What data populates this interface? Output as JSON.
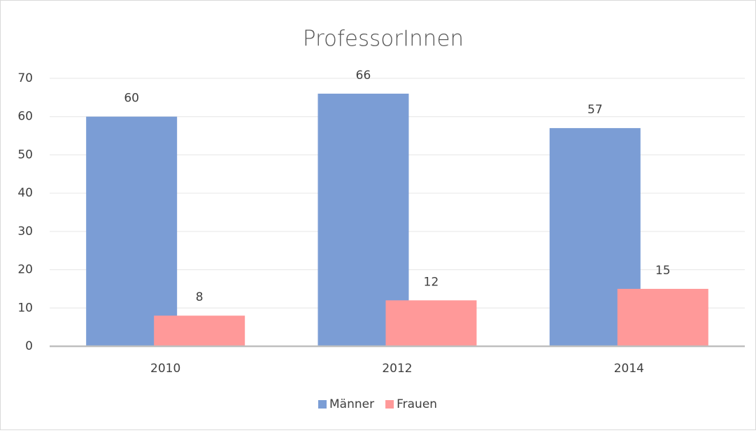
{
  "chart_data": {
    "type": "bar",
    "title": "ProfessorInnen",
    "categories": [
      "2010",
      "2012",
      "2014"
    ],
    "series": [
      {
        "name": "Männer",
        "color": "#7b9dd5",
        "values": [
          60,
          66,
          57
        ]
      },
      {
        "name": "Frauen",
        "color": "#ff9999",
        "values": [
          8,
          12,
          15
        ]
      }
    ],
    "ylim": [
      0,
      70
    ],
    "yticks": [
      0,
      10,
      20,
      30,
      40,
      50,
      60,
      70
    ],
    "grid": true,
    "legend": "bottom",
    "data_labels": true
  }
}
